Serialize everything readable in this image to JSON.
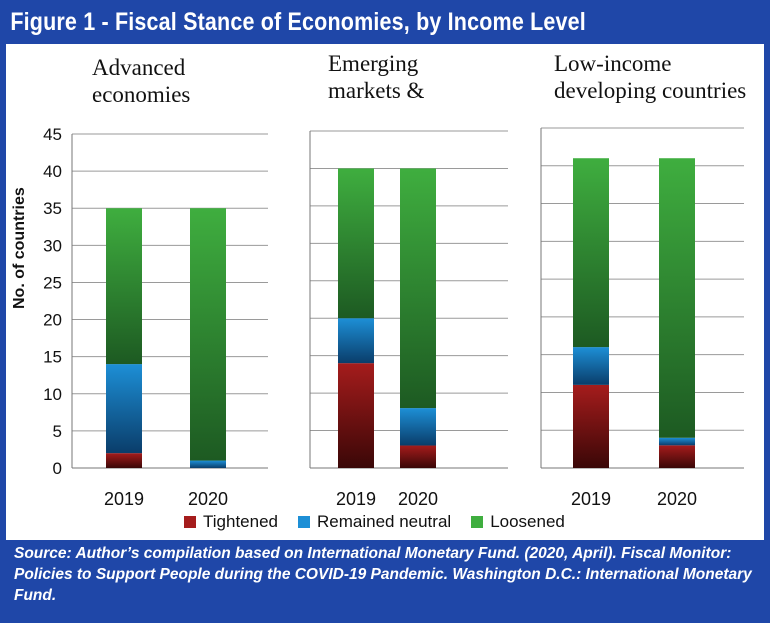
{
  "figure": {
    "title": "Figure 1 - Fiscal Stance of Economies, by Income Level",
    "source": "Source:  Author’s compilation based on International Monetary Fund. (2020, April). Fiscal Monitor: Policies to Support People during the COVID-19 Pandemic. Washington D.C.: International Monetary Fund."
  },
  "colors": {
    "frame": "#1f47a8",
    "tightened": "#a51c1c",
    "remained_neutral": "#1d8fd6",
    "loosened": "#3fae3f"
  },
  "chart_data": {
    "type": "bar",
    "stacked": true,
    "ylabel": "No. of countries",
    "ylim": [
      0,
      45
    ],
    "yticks": [
      0,
      5,
      10,
      15,
      20,
      25,
      30,
      35,
      40,
      45
    ],
    "legend": [
      "Tightened",
      "Remained neutral",
      "Loosened"
    ],
    "legend_placement": "bottom",
    "panels": [
      {
        "title": "Advanced\neconomies",
        "categories": [
          "2019",
          "2020"
        ],
        "series": [
          {
            "name": "Tightened",
            "values": [
              2,
              0
            ]
          },
          {
            "name": "Remained neutral",
            "values": [
              12,
              1
            ]
          },
          {
            "name": "Loosened",
            "values": [
              21,
              34
            ]
          }
        ]
      },
      {
        "title": "Emerging\nmarkets &",
        "categories": [
          "2019",
          "2020"
        ],
        "series": [
          {
            "name": "Tightened",
            "values": [
              14,
              3
            ]
          },
          {
            "name": "Remained neutral",
            "values": [
              6,
              5
            ]
          },
          {
            "name": "Loosened",
            "values": [
              20,
              32
            ]
          }
        ]
      },
      {
        "title": "Low-income\ndeveloping countries",
        "categories": [
          "2019",
          "2020"
        ],
        "series": [
          {
            "name": "Tightened",
            "values": [
              11,
              3
            ]
          },
          {
            "name": "Remained neutral",
            "values": [
              5,
              1
            ]
          },
          {
            "name": "Loosened",
            "values": [
              25,
              37
            ]
          }
        ]
      }
    ]
  }
}
